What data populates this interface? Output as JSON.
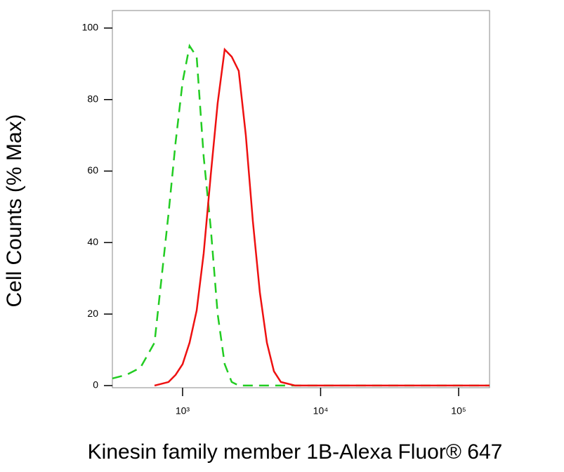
{
  "chart_data": {
    "type": "line",
    "log_x": true,
    "y_label": "Cell Counts (% Max)",
    "x_label": "Kinesin family member 1B-Alexa Fluor® 647",
    "x": [
      310,
      392,
      495,
      626,
      791,
      890,
      1000,
      1124,
      1265,
      1422,
      1600,
      1795,
      2018,
      2270,
      2553,
      2871,
      3228,
      3631,
      4083,
      4592,
      5152,
      6516,
      10420,
      29920,
      96600,
      167500
    ],
    "series": [
      {
        "color": "#22cc22",
        "dashed": true,
        "values": [
          2,
          3,
          5,
          12,
          48,
          68,
          85,
          95,
          92,
          64,
          44,
          20,
          6,
          1,
          0,
          0,
          0,
          0,
          0,
          0,
          0,
          0,
          0,
          0,
          0,
          0
        ]
      },
      {
        "color": "#ee1111",
        "dashed": false,
        "values": [
          null,
          null,
          null,
          0,
          1,
          3,
          6,
          12,
          21,
          37,
          59,
          79,
          94,
          92,
          88,
          70,
          46,
          26,
          12,
          4,
          1,
          0,
          0,
          0,
          0,
          0
        ]
      }
    ],
    "xlim": [
      310,
      167500
    ],
    "ylim": [
      -0.6,
      104.9
    ],
    "xticks": [
      {
        "value": 1000,
        "label": "10³"
      },
      {
        "value": 10000,
        "label": "10⁴"
      },
      {
        "value": 100000,
        "label": "10⁵"
      }
    ],
    "yticks": [
      0,
      20,
      40,
      60,
      80,
      100
    ]
  }
}
